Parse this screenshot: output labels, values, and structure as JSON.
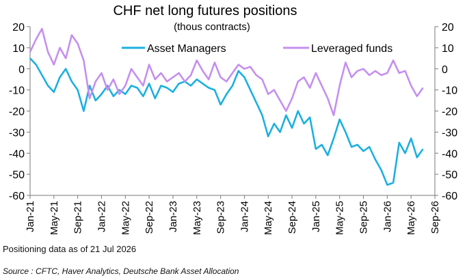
{
  "chart_data": {
    "type": "line",
    "title": "CHF net long futures positions",
    "subtitle": "(thous contracts)",
    "xlabel": "",
    "ylabel": "",
    "ylim": [
      -60,
      20
    ],
    "yticks": [
      20,
      10,
      0,
      -10,
      -20,
      -30,
      -40,
      -50,
      -60
    ],
    "xlim": [
      "2021-01",
      "2026-09"
    ],
    "xticks": [
      "Jan-21",
      "May-21",
      "Sep-21",
      "Jan-22",
      "May-22",
      "Sep-22",
      "Jan-23",
      "May-23",
      "Sep-23",
      "Jan-24",
      "May-24",
      "Sep-24",
      "Jan-25",
      "May-25",
      "Sep-25",
      "Jan-26",
      "May-26",
      "Sep-26"
    ],
    "grid": false,
    "legend_position": "top",
    "series": [
      {
        "name": "Asset Managers",
        "color": "#1ab0e0",
        "points": [
          [
            "2021-01",
            5
          ],
          [
            "2021-02",
            2
          ],
          [
            "2021-03",
            -3
          ],
          [
            "2021-04",
            -8
          ],
          [
            "2021-05",
            -11
          ],
          [
            "2021-06",
            -4
          ],
          [
            "2021-07",
            0
          ],
          [
            "2021-08",
            -6
          ],
          [
            "2021-09",
            -10
          ],
          [
            "2021-10",
            -20
          ],
          [
            "2021-11",
            -8
          ],
          [
            "2021-12",
            -15
          ],
          [
            "2022-01",
            -12
          ],
          [
            "2022-02",
            -8
          ],
          [
            "2022-03",
            -13
          ],
          [
            "2022-04",
            -10
          ],
          [
            "2022-05",
            -12
          ],
          [
            "2022-06",
            -8
          ],
          [
            "2022-07",
            -9
          ],
          [
            "2022-08",
            -13
          ],
          [
            "2022-09",
            -7
          ],
          [
            "2022-10",
            -14
          ],
          [
            "2022-11",
            -8
          ],
          [
            "2022-12",
            -9
          ],
          [
            "2023-01",
            -11
          ],
          [
            "2023-02",
            -7
          ],
          [
            "2023-03",
            -6
          ],
          [
            "2023-04",
            -8
          ],
          [
            "2023-05",
            -5
          ],
          [
            "2023-06",
            -7
          ],
          [
            "2023-07",
            -9
          ],
          [
            "2023-08",
            -10
          ],
          [
            "2023-09",
            -17
          ],
          [
            "2023-10",
            -12
          ],
          [
            "2023-11",
            -8
          ],
          [
            "2023-12",
            -1
          ],
          [
            "2024-01",
            -4
          ],
          [
            "2024-02",
            -10
          ],
          [
            "2024-03",
            -16
          ],
          [
            "2024-04",
            -22
          ],
          [
            "2024-05",
            -32
          ],
          [
            "2024-06",
            -26
          ],
          [
            "2024-07",
            -30
          ],
          [
            "2024-08",
            -22
          ],
          [
            "2024-09",
            -28
          ],
          [
            "2024-10",
            -20
          ],
          [
            "2024-11",
            -26
          ],
          [
            "2024-12",
            -23
          ],
          [
            "2025-01",
            -38
          ],
          [
            "2025-02",
            -36
          ],
          [
            "2025-03",
            -41
          ],
          [
            "2025-04",
            -33
          ],
          [
            "2025-05",
            -24
          ],
          [
            "2025-06",
            -30
          ],
          [
            "2025-07",
            -37
          ],
          [
            "2025-08",
            -36
          ],
          [
            "2025-09",
            -39
          ],
          [
            "2025-10",
            -37
          ],
          [
            "2025-11",
            -43
          ],
          [
            "2025-12",
            -48
          ],
          [
            "2026-01",
            -55
          ],
          [
            "2026-02",
            -54
          ],
          [
            "2026-03",
            -35
          ],
          [
            "2026-04",
            -40
          ],
          [
            "2026-05",
            -33
          ],
          [
            "2026-06",
            -42
          ],
          [
            "2026-07",
            -38
          ]
        ]
      },
      {
        "name": "Leveraged funds",
        "color": "#c58fee",
        "points": [
          [
            "2021-01",
            8
          ],
          [
            "2021-02",
            14
          ],
          [
            "2021-03",
            19
          ],
          [
            "2021-04",
            8
          ],
          [
            "2021-05",
            2
          ],
          [
            "2021-06",
            10
          ],
          [
            "2021-07",
            5
          ],
          [
            "2021-08",
            16
          ],
          [
            "2021-09",
            12
          ],
          [
            "2021-10",
            4
          ],
          [
            "2021-11",
            -14
          ],
          [
            "2021-12",
            -6
          ],
          [
            "2022-01",
            -2
          ],
          [
            "2022-02",
            -10
          ],
          [
            "2022-03",
            -5
          ],
          [
            "2022-04",
            -12
          ],
          [
            "2022-05",
            -8
          ],
          [
            "2022-06",
            0
          ],
          [
            "2022-07",
            -4
          ],
          [
            "2022-08",
            -8
          ],
          [
            "2022-09",
            2
          ],
          [
            "2022-10",
            -5
          ],
          [
            "2022-11",
            -2
          ],
          [
            "2022-12",
            -6
          ],
          [
            "2023-01",
            -4
          ],
          [
            "2023-02",
            -2
          ],
          [
            "2023-03",
            -6
          ],
          [
            "2023-04",
            -3
          ],
          [
            "2023-05",
            4
          ],
          [
            "2023-06",
            -1
          ],
          [
            "2023-07",
            -5
          ],
          [
            "2023-08",
            3
          ],
          [
            "2023-09",
            -4
          ],
          [
            "2023-10",
            -6
          ],
          [
            "2023-11",
            -2
          ],
          [
            "2023-12",
            2
          ],
          [
            "2024-01",
            0
          ],
          [
            "2024-02",
            1
          ],
          [
            "2024-03",
            -3
          ],
          [
            "2024-04",
            -5
          ],
          [
            "2024-05",
            -12
          ],
          [
            "2024-06",
            -10
          ],
          [
            "2024-07",
            -15
          ],
          [
            "2024-08",
            -20
          ],
          [
            "2024-09",
            -14
          ],
          [
            "2024-10",
            -6
          ],
          [
            "2024-11",
            -4
          ],
          [
            "2024-12",
            -9
          ],
          [
            "2025-01",
            -2
          ],
          [
            "2025-02",
            -8
          ],
          [
            "2025-03",
            -14
          ],
          [
            "2025-04",
            -22
          ],
          [
            "2025-05",
            -8
          ],
          [
            "2025-06",
            3
          ],
          [
            "2025-07",
            -4
          ],
          [
            "2025-08",
            -1
          ],
          [
            "2025-09",
            0
          ],
          [
            "2025-10",
            -3
          ],
          [
            "2025-11",
            -1
          ],
          [
            "2025-12",
            -3
          ],
          [
            "2026-01",
            -2
          ],
          [
            "2026-02",
            4
          ],
          [
            "2026-03",
            -2
          ],
          [
            "2026-04",
            -1
          ],
          [
            "2026-05",
            -8
          ],
          [
            "2026-06",
            -13
          ],
          [
            "2026-07",
            -9
          ]
        ]
      }
    ],
    "note": "Positioning data as of 21 Jul 2026",
    "source": "Source : CFTC, Haver Analytics, Deutsche Bank Asset Allocation"
  }
}
